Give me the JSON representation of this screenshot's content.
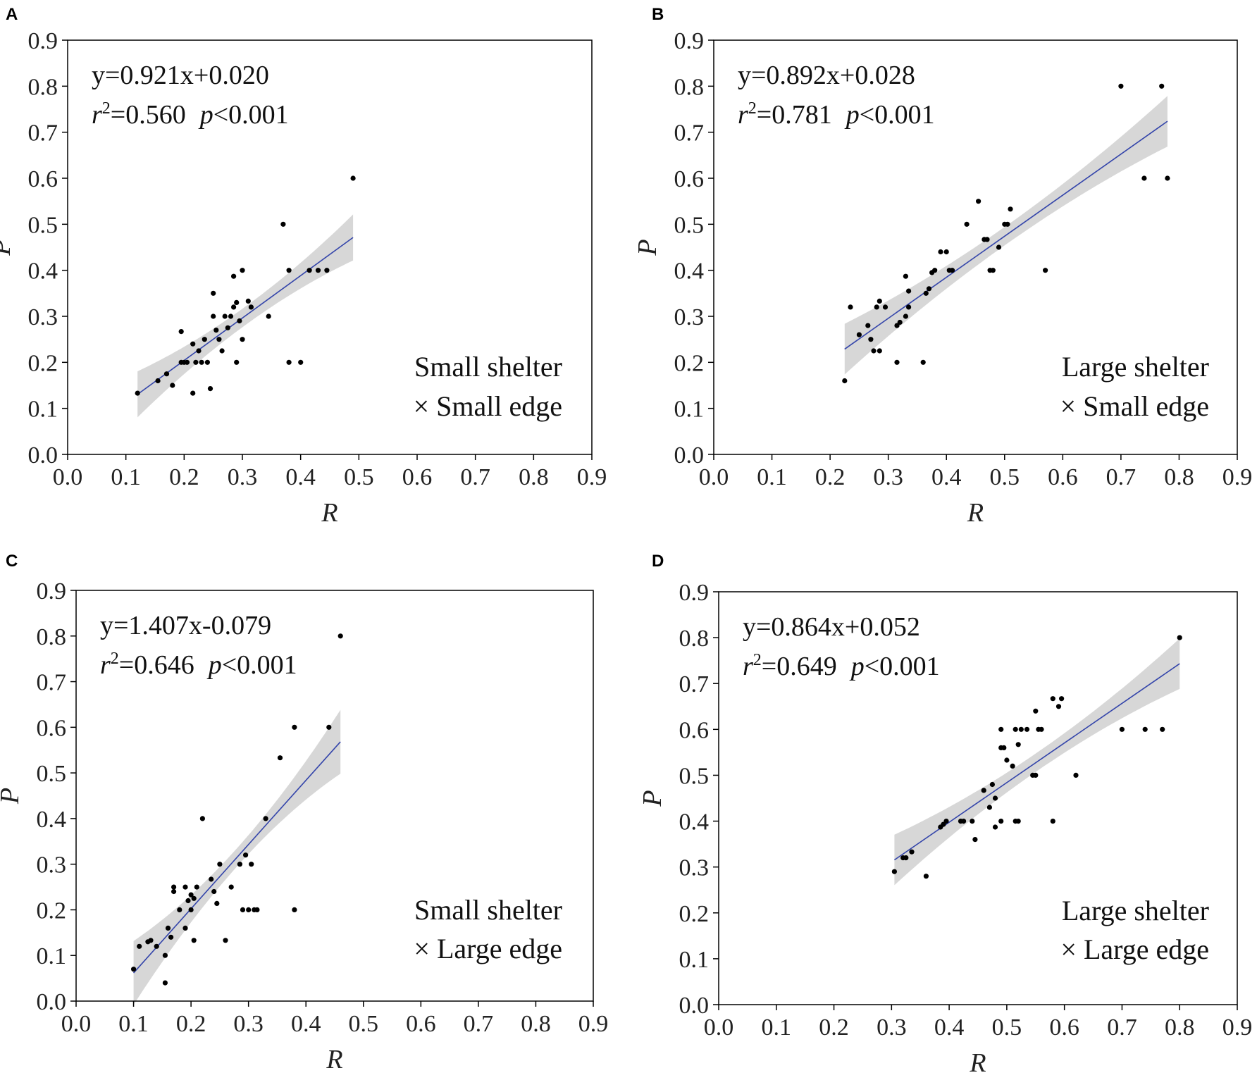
{
  "chart_data": [
    {
      "panel": "A",
      "type": "scatter",
      "xlabel": "R",
      "ylabel": "P",
      "xlim": [
        0.0,
        0.9
      ],
      "ylim": [
        0.0,
        0.9
      ],
      "xticks": [
        "0.0",
        "0.1",
        "0.2",
        "0.3",
        "0.4",
        "0.5",
        "0.6",
        "0.7",
        "0.8",
        "0.9"
      ],
      "yticks": [
        "0.0",
        "0.1",
        "0.2",
        "0.3",
        "0.4",
        "0.5",
        "0.6",
        "0.7",
        "0.8",
        "0.9"
      ],
      "equation": "y=0.921x+0.020",
      "r2": "=0.560",
      "p": "<0.001",
      "group_line1": "Small shelter",
      "group_line2": "× Small edge",
      "fit": {
        "slope": 0.921,
        "intercept": 0.02,
        "x_range": [
          0.12,
          0.49
        ],
        "ci_half_ends": 0.05,
        "ci_half_mid": 0.02
      },
      "points": [
        [
          0.12,
          0.133
        ],
        [
          0.155,
          0.16
        ],
        [
          0.17,
          0.175
        ],
        [
          0.18,
          0.15
        ],
        [
          0.195,
          0.2
        ],
        [
          0.2,
          0.2
        ],
        [
          0.195,
          0.267
        ],
        [
          0.215,
          0.24
        ],
        [
          0.22,
          0.2
        ],
        [
          0.23,
          0.2
        ],
        [
          0.215,
          0.133
        ],
        [
          0.235,
          0.25
        ],
        [
          0.24,
          0.2
        ],
        [
          0.245,
          0.143
        ],
        [
          0.25,
          0.3
        ],
        [
          0.25,
          0.35
        ],
        [
          0.255,
          0.27
        ],
        [
          0.26,
          0.25
        ],
        [
          0.265,
          0.225
        ],
        [
          0.27,
          0.3
        ],
        [
          0.275,
          0.275
        ],
        [
          0.28,
          0.3
        ],
        [
          0.285,
          0.32
        ],
        [
          0.285,
          0.387
        ],
        [
          0.29,
          0.33
        ],
        [
          0.29,
          0.2
        ],
        [
          0.295,
          0.29
        ],
        [
          0.3,
          0.4
        ],
        [
          0.3,
          0.25
        ],
        [
          0.31,
          0.333
        ],
        [
          0.315,
          0.32
        ],
        [
          0.345,
          0.3
        ],
        [
          0.37,
          0.5
        ],
        [
          0.38,
          0.4
        ],
        [
          0.38,
          0.2
        ],
        [
          0.4,
          0.2
        ],
        [
          0.415,
          0.4
        ],
        [
          0.43,
          0.4
        ],
        [
          0.445,
          0.4
        ],
        [
          0.49,
          0.6
        ],
        [
          0.225,
          0.225
        ],
        [
          0.205,
          0.2
        ]
      ]
    },
    {
      "panel": "B",
      "type": "scatter",
      "xlabel": "R",
      "ylabel": "P",
      "xlim": [
        0.0,
        0.9
      ],
      "ylim": [
        0.0,
        0.9
      ],
      "xticks": [
        "0.0",
        "0.1",
        "0.2",
        "0.3",
        "0.4",
        "0.5",
        "0.6",
        "0.7",
        "0.8",
        "0.9"
      ],
      "yticks": [
        "0.0",
        "0.1",
        "0.2",
        "0.3",
        "0.4",
        "0.5",
        "0.6",
        "0.7",
        "0.8",
        "0.9"
      ],
      "equation": "y=0.892x+0.028",
      "r2": "=0.781",
      "p": "<0.001",
      "group_line1": "Large shelter",
      "group_line2": "× Small edge",
      "fit": {
        "slope": 0.892,
        "intercept": 0.028,
        "x_range": [
          0.225,
          0.78
        ],
        "ci_half_ends": 0.055,
        "ci_half_mid": 0.02
      },
      "points": [
        [
          0.225,
          0.16
        ],
        [
          0.235,
          0.32
        ],
        [
          0.25,
          0.26
        ],
        [
          0.265,
          0.28
        ],
        [
          0.27,
          0.25
        ],
        [
          0.275,
          0.225
        ],
        [
          0.28,
          0.32
        ],
        [
          0.285,
          0.225
        ],
        [
          0.285,
          0.333
        ],
        [
          0.295,
          0.32
        ],
        [
          0.315,
          0.2
        ],
        [
          0.315,
          0.28
        ],
        [
          0.32,
          0.287
        ],
        [
          0.33,
          0.3
        ],
        [
          0.33,
          0.387
        ],
        [
          0.335,
          0.32
        ],
        [
          0.335,
          0.355
        ],
        [
          0.36,
          0.2
        ],
        [
          0.365,
          0.35
        ],
        [
          0.37,
          0.36
        ],
        [
          0.375,
          0.395
        ],
        [
          0.38,
          0.4
        ],
        [
          0.39,
          0.44
        ],
        [
          0.4,
          0.44
        ],
        [
          0.405,
          0.4
        ],
        [
          0.41,
          0.4
        ],
        [
          0.435,
          0.5
        ],
        [
          0.455,
          0.55
        ],
        [
          0.465,
          0.467
        ],
        [
          0.47,
          0.467
        ],
        [
          0.475,
          0.4
        ],
        [
          0.48,
          0.4
        ],
        [
          0.49,
          0.45
        ],
        [
          0.5,
          0.5
        ],
        [
          0.505,
          0.5
        ],
        [
          0.51,
          0.533
        ],
        [
          0.57,
          0.4
        ],
        [
          0.7,
          0.8
        ],
        [
          0.74,
          0.6
        ],
        [
          0.77,
          0.8
        ],
        [
          0.78,
          0.6
        ]
      ]
    },
    {
      "panel": "C",
      "type": "scatter",
      "xlabel": "R",
      "ylabel": "P",
      "xlim": [
        0.0,
        0.9
      ],
      "ylim": [
        0.0,
        0.9
      ],
      "xticks": [
        "0.0",
        "0.1",
        "0.2",
        "0.3",
        "0.4",
        "0.5",
        "0.6",
        "0.7",
        "0.8",
        "0.9"
      ],
      "yticks": [
        "0.0",
        "0.1",
        "0.2",
        "0.3",
        "0.4",
        "0.5",
        "0.6",
        "0.7",
        "0.8",
        "0.9"
      ],
      "equation": "y=1.407x-0.079",
      "r2": "=0.646",
      "p": "<0.001",
      "group_line1": "Small shelter",
      "group_line2": "× Large edge",
      "fit": {
        "slope": 1.407,
        "intercept": -0.079,
        "x_range": [
          0.1,
          0.46
        ],
        "ci_half_ends": 0.07,
        "ci_half_mid": 0.02
      },
      "points": [
        [
          0.1,
          0.07
        ],
        [
          0.11,
          0.12
        ],
        [
          0.125,
          0.13
        ],
        [
          0.13,
          0.133
        ],
        [
          0.14,
          0.12
        ],
        [
          0.155,
          0.1
        ],
        [
          0.16,
          0.16
        ],
        [
          0.165,
          0.14
        ],
        [
          0.155,
          0.04
        ],
        [
          0.17,
          0.24
        ],
        [
          0.17,
          0.25
        ],
        [
          0.18,
          0.2
        ],
        [
          0.19,
          0.16
        ],
        [
          0.19,
          0.25
        ],
        [
          0.195,
          0.22
        ],
        [
          0.2,
          0.2
        ],
        [
          0.2,
          0.233
        ],
        [
          0.205,
          0.133
        ],
        [
          0.205,
          0.225
        ],
        [
          0.21,
          0.25
        ],
        [
          0.22,
          0.4
        ],
        [
          0.235,
          0.267
        ],
        [
          0.24,
          0.24
        ],
        [
          0.245,
          0.214
        ],
        [
          0.25,
          0.3
        ],
        [
          0.26,
          0.133
        ],
        [
          0.27,
          0.25
        ],
        [
          0.285,
          0.3
        ],
        [
          0.29,
          0.2
        ],
        [
          0.295,
          0.32
        ],
        [
          0.3,
          0.2
        ],
        [
          0.305,
          0.3
        ],
        [
          0.31,
          0.2
        ],
        [
          0.315,
          0.2
        ],
        [
          0.33,
          0.4
        ],
        [
          0.355,
          0.533
        ],
        [
          0.38,
          0.6
        ],
        [
          0.38,
          0.2
        ],
        [
          0.44,
          0.6
        ],
        [
          0.46,
          0.8
        ]
      ]
    },
    {
      "panel": "D",
      "type": "scatter",
      "xlabel": "R",
      "ylabel": "P",
      "xlim": [
        0.0,
        0.9
      ],
      "ylim": [
        0.0,
        0.9
      ],
      "xticks": [
        "0.0",
        "0.1",
        "0.2",
        "0.3",
        "0.4",
        "0.5",
        "0.6",
        "0.7",
        "0.8",
        "0.9"
      ],
      "yticks": [
        "0.0",
        "0.1",
        "0.2",
        "0.3",
        "0.4",
        "0.5",
        "0.6",
        "0.7",
        "0.8",
        "0.9"
      ],
      "equation": "y=0.864x+0.052",
      "r2": "=0.649",
      "p": "<0.001",
      "group_line1": "Large shelter",
      "group_line2": "× Large edge",
      "fit": {
        "slope": 0.864,
        "intercept": 0.052,
        "x_range": [
          0.305,
          0.8
        ],
        "ci_half_ends": 0.055,
        "ci_half_mid": 0.02
      },
      "points": [
        [
          0.305,
          0.29
        ],
        [
          0.32,
          0.32
        ],
        [
          0.325,
          0.32
        ],
        [
          0.335,
          0.333
        ],
        [
          0.36,
          0.28
        ],
        [
          0.385,
          0.387
        ],
        [
          0.39,
          0.393
        ],
        [
          0.395,
          0.4
        ],
        [
          0.42,
          0.4
        ],
        [
          0.425,
          0.4
        ],
        [
          0.44,
          0.4
        ],
        [
          0.445,
          0.36
        ],
        [
          0.46,
          0.467
        ],
        [
          0.47,
          0.43
        ],
        [
          0.475,
          0.48
        ],
        [
          0.48,
          0.45
        ],
        [
          0.48,
          0.387
        ],
        [
          0.49,
          0.4
        ],
        [
          0.49,
          0.6
        ],
        [
          0.49,
          0.56
        ],
        [
          0.495,
          0.56
        ],
        [
          0.5,
          0.533
        ],
        [
          0.51,
          0.52
        ],
        [
          0.515,
          0.4
        ],
        [
          0.515,
          0.6
        ],
        [
          0.52,
          0.4
        ],
        [
          0.52,
          0.567
        ],
        [
          0.525,
          0.6
        ],
        [
          0.535,
          0.6
        ],
        [
          0.545,
          0.5
        ],
        [
          0.55,
          0.5
        ],
        [
          0.55,
          0.64
        ],
        [
          0.555,
          0.6
        ],
        [
          0.56,
          0.6
        ],
        [
          0.58,
          0.4
        ],
        [
          0.58,
          0.667
        ],
        [
          0.59,
          0.65
        ],
        [
          0.595,
          0.667
        ],
        [
          0.62,
          0.5
        ],
        [
          0.7,
          0.6
        ],
        [
          0.74,
          0.6
        ],
        [
          0.77,
          0.6
        ],
        [
          0.8,
          0.8
        ]
      ]
    }
  ]
}
